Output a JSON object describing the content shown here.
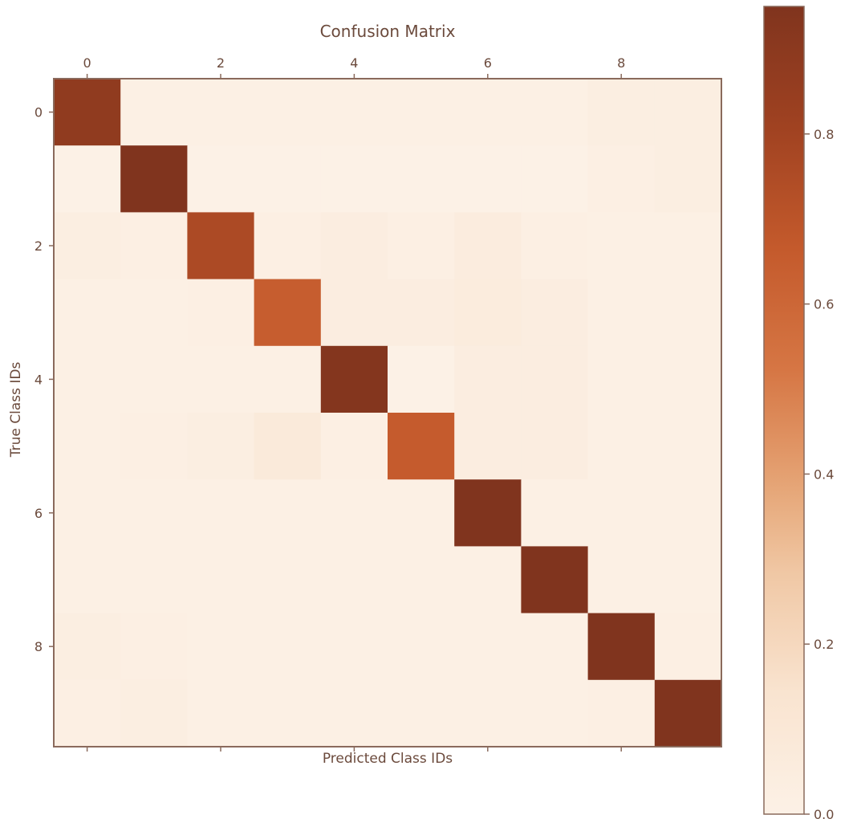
{
  "chart_data": {
    "type": "heatmap",
    "title": "Confusion Matrix",
    "xlabel": "Predicted Class IDs",
    "ylabel": "True Class IDs",
    "x_ticks": [
      "0",
      "2",
      "4",
      "6",
      "8"
    ],
    "y_ticks": [
      "0",
      "2",
      "4",
      "6",
      "8"
    ],
    "rows": 10,
    "cols": 10,
    "values": [
      [
        0.88,
        0.01,
        0.01,
        0.01,
        0.01,
        0.01,
        0.01,
        0.01,
        0.03,
        0.03
      ],
      [
        0.0,
        0.95,
        0.0,
        0.0,
        0.0,
        0.0,
        0.0,
        0.0,
        0.02,
        0.03
      ],
      [
        0.03,
        0.02,
        0.76,
        0.02,
        0.04,
        0.02,
        0.05,
        0.02,
        0.01,
        0.01
      ],
      [
        0.01,
        0.01,
        0.02,
        0.65,
        0.04,
        0.04,
        0.06,
        0.04,
        0.01,
        0.01
      ],
      [
        0.01,
        0.01,
        0.01,
        0.01,
        0.93,
        0.0,
        0.04,
        0.04,
        0.01,
        0.01
      ],
      [
        0.01,
        0.02,
        0.03,
        0.08,
        0.02,
        0.66,
        0.04,
        0.04,
        0.01,
        0.01
      ],
      [
        0.01,
        0.01,
        0.01,
        0.01,
        0.01,
        0.01,
        0.96,
        0.01,
        0.01,
        0.01
      ],
      [
        0.01,
        0.01,
        0.01,
        0.01,
        0.01,
        0.01,
        0.01,
        0.96,
        0.01,
        0.01
      ],
      [
        0.03,
        0.02,
        0.01,
        0.01,
        0.01,
        0.01,
        0.01,
        0.01,
        0.96,
        0.02
      ],
      [
        0.02,
        0.03,
        0.01,
        0.01,
        0.01,
        0.01,
        0.01,
        0.01,
        0.02,
        0.97
      ]
    ],
    "colorbar": {
      "colormap": "Oranges (cream to dark brown)",
      "min": 0.0,
      "max": 0.95,
      "ticks": [
        "0.0",
        "0.2",
        "0.4",
        "0.6",
        "0.8"
      ],
      "tick_values": [
        0.0,
        0.2,
        0.4,
        0.6,
        0.8
      ]
    },
    "colors": {
      "low": "#fcf1e6",
      "high": "#86381f",
      "axes": "#8a6a5c",
      "text": "#6b4a3c"
    },
    "grid": false,
    "legend": "colorbar-right"
  }
}
